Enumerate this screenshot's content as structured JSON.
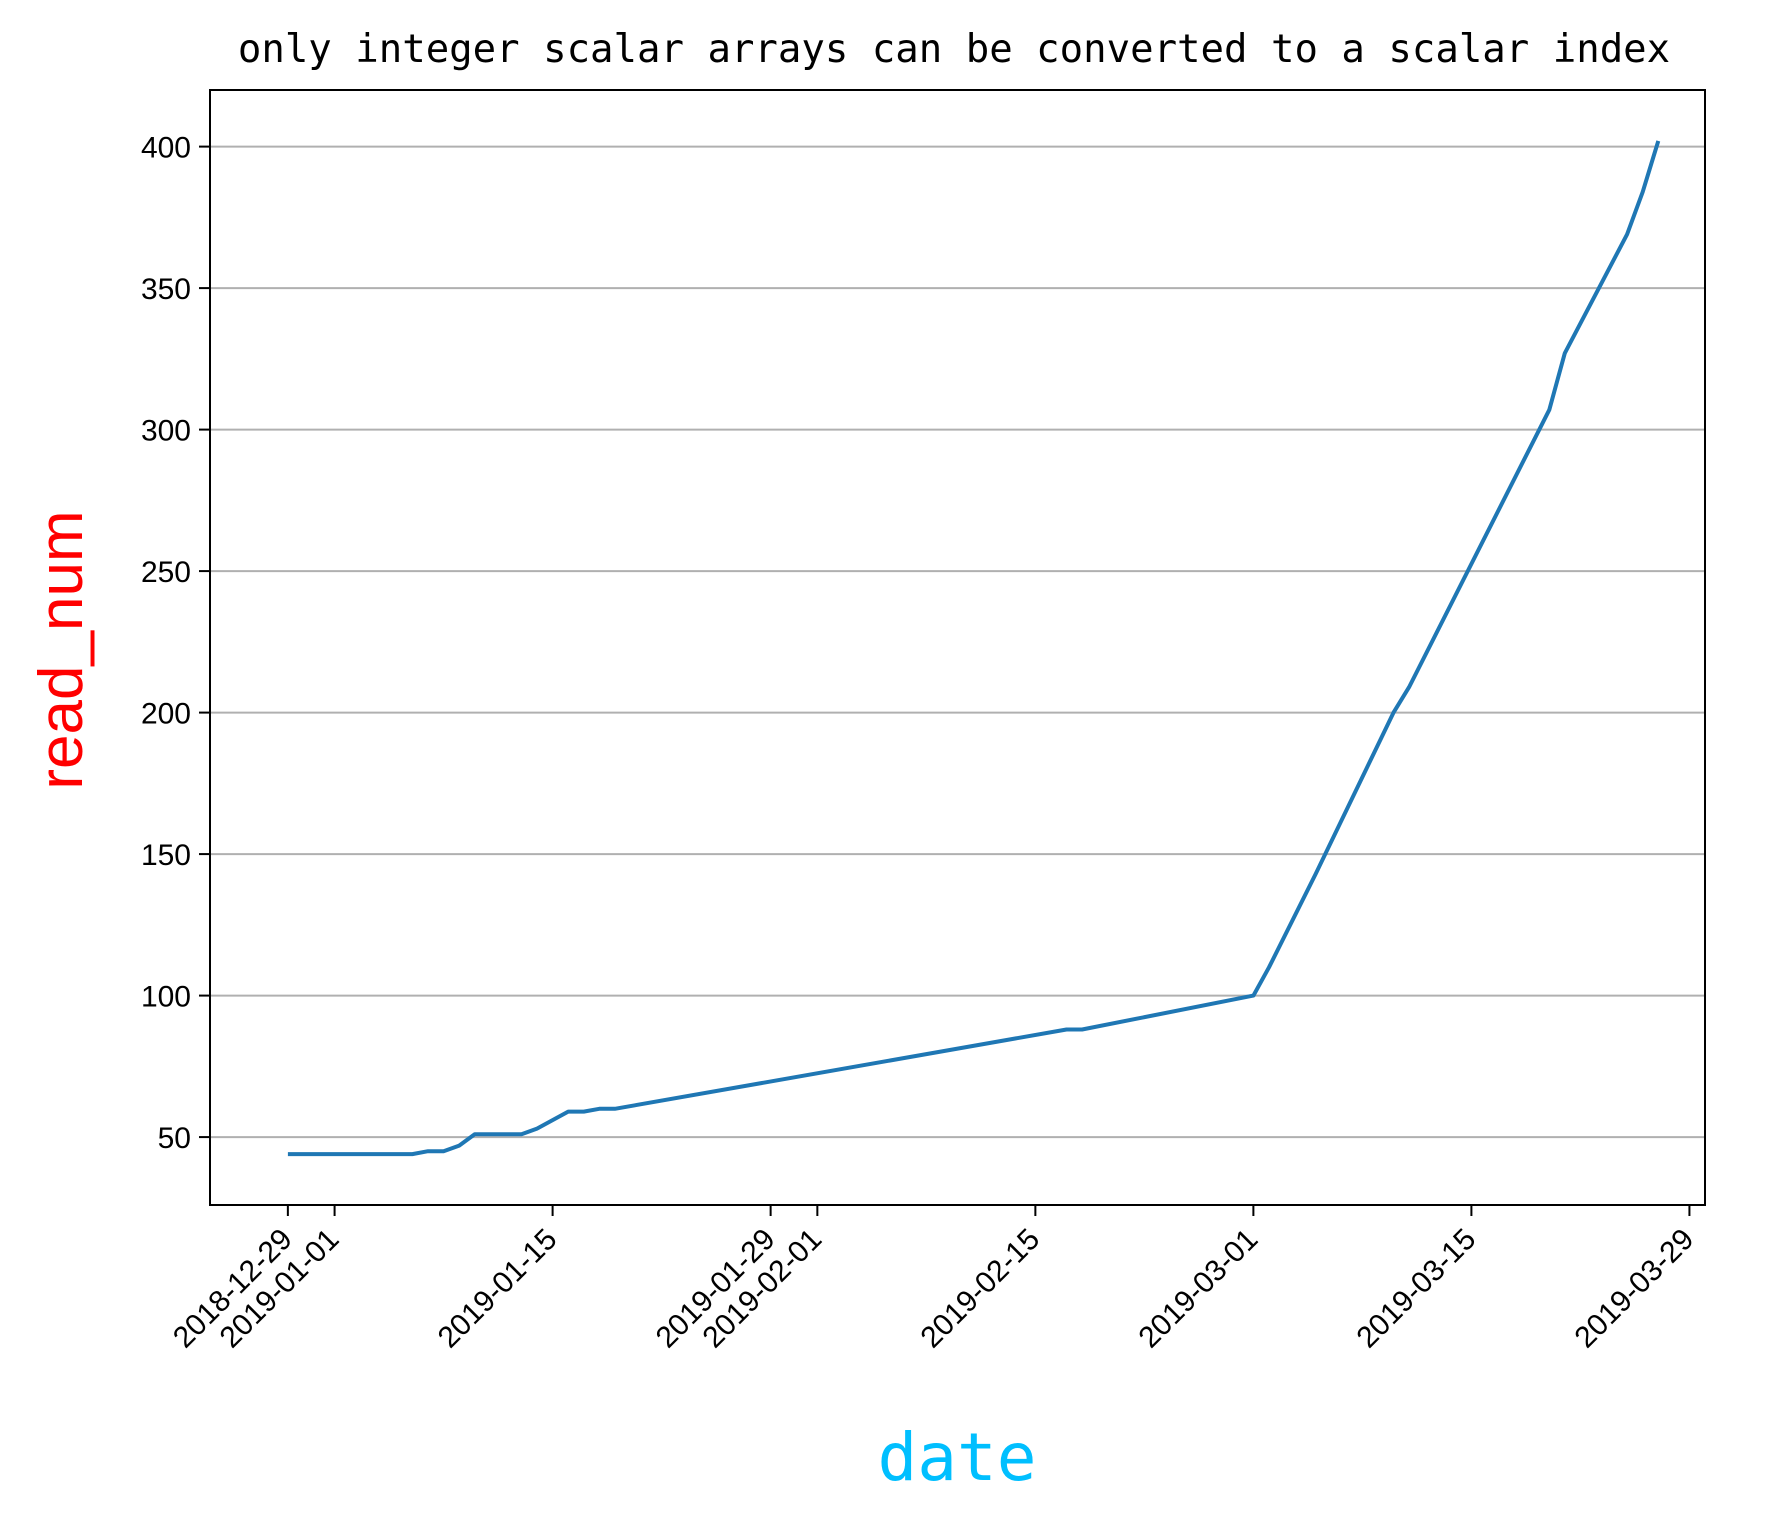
{
  "chart_data": {
    "type": "line",
    "title": "only integer scalar arrays can be converted to a scalar index",
    "xlabel": "date",
    "ylabel": "read_num",
    "xlabel_color": "#00bfff",
    "ylabel_color": "#ff0000",
    "line_color": "#1f77b4",
    "grid": "horizontal",
    "xlim": [
      "2018-12-24",
      "2019-03-30"
    ],
    "ylim": [
      26,
      420
    ],
    "x_ticks": [
      "2018-12-29",
      "2019-01-01",
      "2019-01-15",
      "2019-01-29",
      "2019-02-01",
      "2019-02-15",
      "2019-03-01",
      "2019-03-15",
      "2019-03-29"
    ],
    "y_ticks": [
      50,
      100,
      150,
      200,
      250,
      300,
      350,
      400
    ],
    "series": [
      {
        "x": [
          "2018-12-29",
          "2019-01-06",
          "2019-01-07",
          "2019-01-08",
          "2019-01-09",
          "2019-01-10",
          "2019-01-13",
          "2019-01-14",
          "2019-01-16",
          "2019-01-17",
          "2019-01-18",
          "2019-01-19",
          "2019-02-17",
          "2019-02-18",
          "2019-03-01",
          "2019-03-02",
          "2019-03-05",
          "2019-03-10",
          "2019-03-11",
          "2019-03-20",
          "2019-03-21",
          "2019-03-25",
          "2019-03-26",
          "2019-03-27"
        ],
        "values": [
          44,
          44,
          45,
          45,
          47,
          51,
          51,
          53,
          59,
          59,
          60,
          60,
          88,
          88,
          100,
          110,
          143,
          200,
          209,
          307,
          327,
          369,
          384,
          402
        ]
      }
    ]
  }
}
